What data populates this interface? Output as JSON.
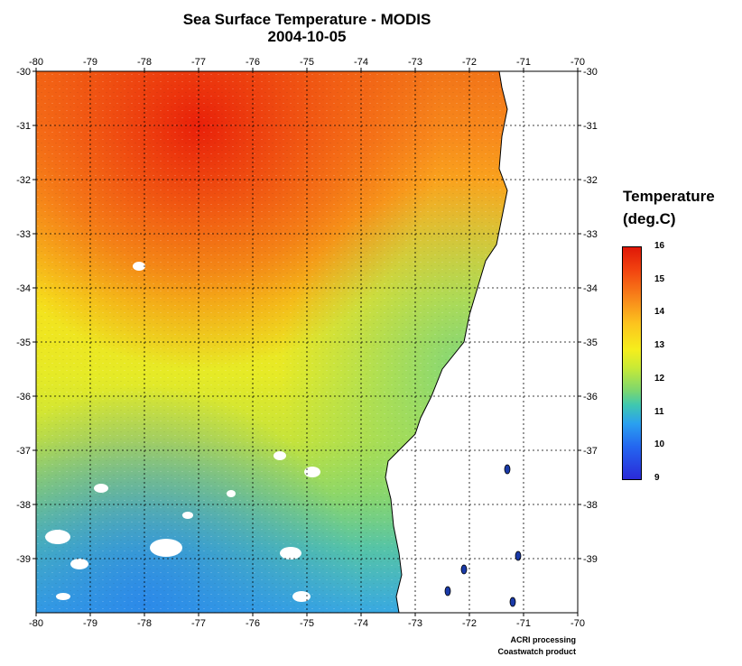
{
  "title": "Sea Surface Temperature - MODIS",
  "date": "2004-10-05",
  "legend": {
    "title_line1": "Temperature",
    "title_line2": "(deg.C)",
    "ticks": [
      "16",
      "15",
      "14",
      "13",
      "12",
      "11",
      "10",
      "9"
    ],
    "min": 9,
    "max": 16,
    "colors": [
      "#2a2ad8",
      "#2466f0",
      "#2aa0f0",
      "#3fc8b0",
      "#7ad670",
      "#c8ea36",
      "#f6ee1c",
      "#fcc41e",
      "#f8861a",
      "#f24410",
      "#e01808"
    ]
  },
  "map": {
    "lon_labels": [
      "-80",
      "-79",
      "-78",
      "-77",
      "-76",
      "-75",
      "-74",
      "-73",
      "-72",
      "-71",
      "-70"
    ],
    "lat_labels": [
      "-30",
      "-31",
      "-32",
      "-33",
      "-34",
      "-35",
      "-36",
      "-37",
      "-38",
      "-39"
    ],
    "lon_range": [
      -80,
      -70
    ],
    "lat_range": [
      -30,
      -40
    ],
    "land_color": "#ffffff",
    "grid": "dotted"
  },
  "credits": {
    "line1": "ACRI processing",
    "line2": "Coastwatch product"
  }
}
